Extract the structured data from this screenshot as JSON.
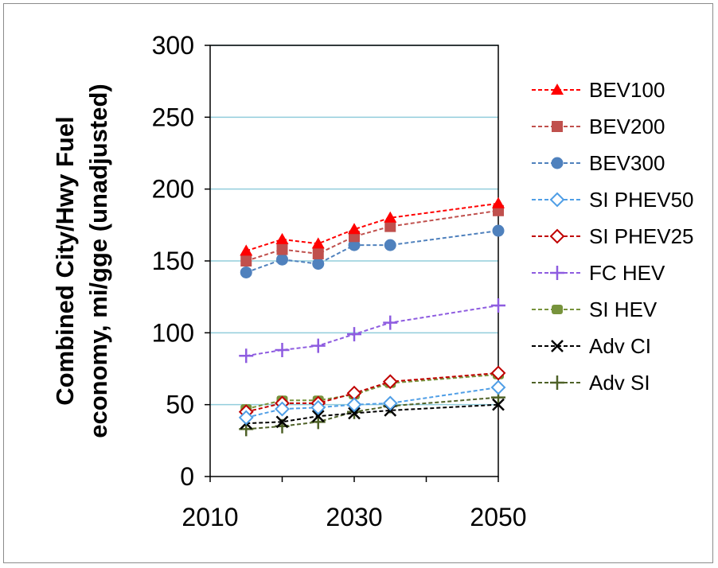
{
  "chart_data": {
    "type": "line",
    "title": "",
    "xlabel": "",
    "ylabel": "Combined City/Hwy Fuel economy, mi/gge (unadjusted)",
    "ylabel_lines": [
      "Combined City/Hwy Fuel",
      "economy, mi/gge (unadjusted)"
    ],
    "xlim": [
      2010,
      2050
    ],
    "ylim": [
      0,
      300
    ],
    "x_ticks": [
      2010,
      2030,
      2050
    ],
    "y_ticks": [
      0,
      50,
      100,
      150,
      200,
      250,
      300
    ],
    "grid": "horizontal",
    "legend_position": "right",
    "x": [
      2015,
      2020,
      2025,
      2030,
      2035,
      2050
    ],
    "series": [
      {
        "name": "BEV100",
        "color": "#ff0000",
        "marker": "triangle",
        "values": [
          157,
          165,
          162,
          172,
          180,
          190
        ]
      },
      {
        "name": "BEV200",
        "color": "#c0504d",
        "marker": "square",
        "values": [
          150,
          158,
          155,
          167,
          174,
          185
        ]
      },
      {
        "name": "BEV300",
        "color": "#4f81bd",
        "marker": "circle",
        "values": [
          142,
          151,
          148,
          161,
          161,
          171
        ]
      },
      {
        "name": "SI PHEV50",
        "color": "#4f9ee6",
        "marker": "diamond-open",
        "values": [
          41,
          47,
          48,
          50,
          51,
          62
        ]
      },
      {
        "name": "SI PHEV25",
        "color": "#c00000",
        "marker": "diamond-open",
        "values": [
          45,
          51,
          51,
          58,
          66,
          72
        ]
      },
      {
        "name": "FC HEV",
        "color": "#8e5ce0",
        "marker": "plus",
        "values": [
          84,
          88,
          91,
          99,
          107,
          119
        ]
      },
      {
        "name": "SI HEV",
        "color": "#77933c",
        "marker": "square-round",
        "values": [
          47,
          53,
          53,
          57,
          65,
          71
        ]
      },
      {
        "name": "Adv CI",
        "color": "#000000",
        "marker": "x",
        "values": [
          37,
          38,
          42,
          44,
          46,
          50
        ]
      },
      {
        "name": "Adv SI",
        "color": "#4f6228",
        "marker": "plus",
        "values": [
          33,
          35,
          38,
          45,
          49,
          55
        ]
      }
    ]
  }
}
